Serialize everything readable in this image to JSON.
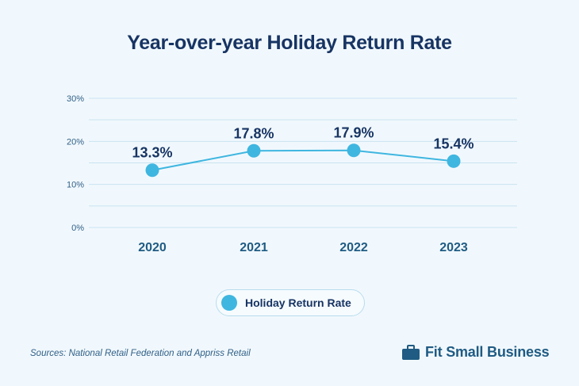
{
  "chart_data": {
    "type": "line",
    "title": "Year-over-year Holiday Return Rate",
    "categories": [
      "2020",
      "2021",
      "2022",
      "2023"
    ],
    "series": [
      {
        "name": "Holiday Return Rate",
        "values": [
          13.3,
          17.8,
          17.9,
          15.4
        ]
      }
    ],
    "data_labels": [
      "13.3%",
      "17.8%",
      "17.9%",
      "15.4%"
    ],
    "yticks": [
      "0%",
      "10%",
      "20%",
      "30%"
    ],
    "ylim": [
      0,
      30
    ],
    "grid": true,
    "legend_placement": "bottom-center",
    "colors": {
      "line": "#3fb6e0",
      "text": "#173463",
      "grid": "#c9e3f1"
    }
  },
  "footer": {
    "source": "Sources: National Retail Federation and Appriss Retail",
    "brand": "Fit Small Business"
  }
}
